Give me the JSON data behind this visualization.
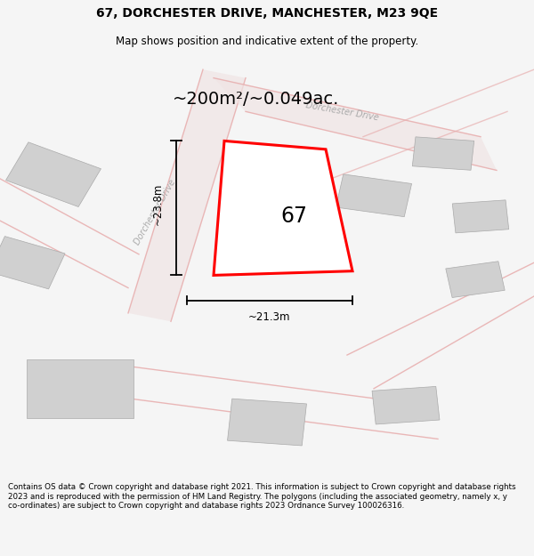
{
  "title_line1": "67, DORCHESTER DRIVE, MANCHESTER, M23 9QE",
  "title_line2": "Map shows position and indicative extent of the property.",
  "area_text": "~200m²/~0.049ac.",
  "label_67": "67",
  "dim_vertical": "~23.8m",
  "dim_horizontal": "~21.3m",
  "footer_text": "Contains OS data © Crown copyright and database right 2021. This information is subject to Crown copyright and database rights 2023 and is reproduced with the permission of HM Land Registry. The polygons (including the associated geometry, namely x, y co-ordinates) are subject to Crown copyright and database rights 2023 Ordnance Survey 100026316.",
  "bg_color": "#f5f5f5",
  "map_bg": "#ffffff",
  "road_color": "#e8b0b0",
  "building_color": "#d0d0d0",
  "building_edge": "#aaaaaa",
  "highlight_color": "#ff0000",
  "road_label_color": "#aaaaaa",
  "title_color": "#000000",
  "footer_color": "#000000",
  "figsize": [
    6.0,
    6.25
  ],
  "dpi": 100
}
